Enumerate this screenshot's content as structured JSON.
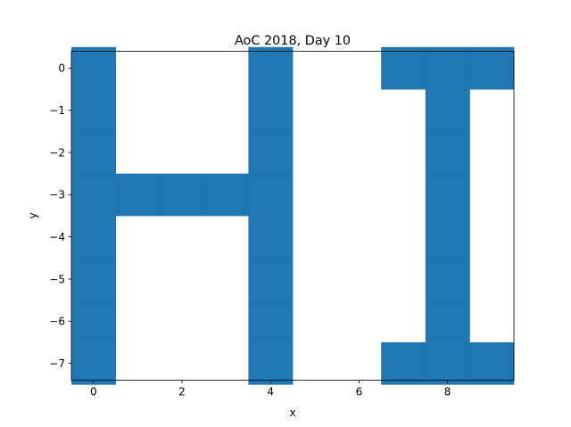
{
  "chart_data": {
    "type": "scatter",
    "title": "AoC 2018, Day 10",
    "xlabel": "x",
    "ylabel": "y",
    "xlim": [
      -0.5,
      9.5
    ],
    "ylim": [
      -7.4,
      0.4
    ],
    "xticks": [
      0,
      2,
      4,
      6,
      8
    ],
    "yticks": [
      0,
      -1,
      -2,
      -3,
      -4,
      -5,
      -6,
      -7
    ],
    "ytick_labels": [
      "0",
      "−1",
      "−2",
      "−3",
      "−4",
      "−5",
      "−6",
      "−7"
    ],
    "grid": false,
    "marker": "square",
    "color": "#1f77b4",
    "series": [
      {
        "points": [
          [
            0,
            0
          ],
          [
            0,
            -1
          ],
          [
            0,
            -2
          ],
          [
            0,
            -3
          ],
          [
            0,
            -4
          ],
          [
            0,
            -5
          ],
          [
            0,
            -6
          ],
          [
            0,
            -7
          ],
          [
            1,
            -3
          ],
          [
            2,
            -3
          ],
          [
            3,
            -3
          ],
          [
            4,
            0
          ],
          [
            4,
            -1
          ],
          [
            4,
            -2
          ],
          [
            4,
            -3
          ],
          [
            4,
            -4
          ],
          [
            4,
            -5
          ],
          [
            4,
            -6
          ],
          [
            4,
            -7
          ],
          [
            7,
            0
          ],
          [
            8,
            0
          ],
          [
            9,
            0
          ],
          [
            8,
            -1
          ],
          [
            8,
            -2
          ],
          [
            8,
            -3
          ],
          [
            8,
            -4
          ],
          [
            8,
            -5
          ],
          [
            8,
            -6
          ],
          [
            7,
            -7
          ],
          [
            8,
            -7
          ],
          [
            9,
            -7
          ]
        ]
      }
    ]
  }
}
